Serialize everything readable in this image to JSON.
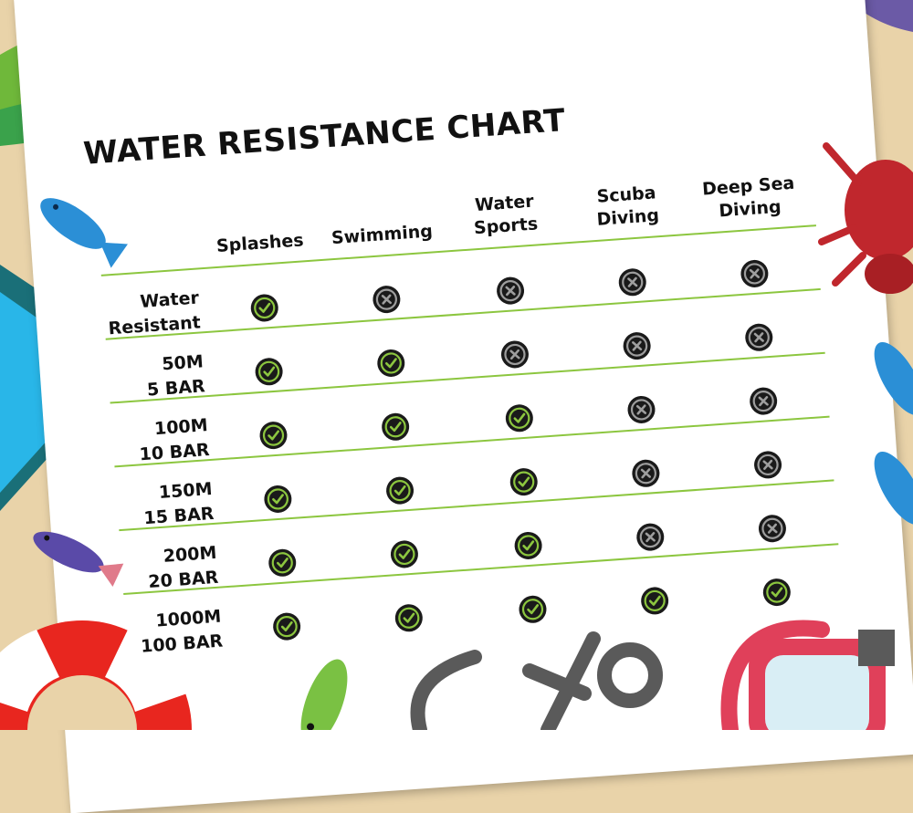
{
  "chart_data": {
    "type": "table",
    "title": "WATER RESISTANCE CHART",
    "columns": [
      {
        "lines": [
          "Splashes"
        ]
      },
      {
        "lines": [
          "Swimming"
        ]
      },
      {
        "lines": [
          "Water",
          "Sports"
        ]
      },
      {
        "lines": [
          "Scuba",
          "Diving"
        ]
      },
      {
        "lines": [
          "Deep Sea",
          "Diving"
        ]
      }
    ],
    "rows": [
      {
        "lines": [
          "Water",
          "Resistant"
        ],
        "values": [
          true,
          false,
          false,
          false,
          false
        ]
      },
      {
        "lines": [
          "50M",
          "5 BAR"
        ],
        "values": [
          true,
          true,
          false,
          false,
          false
        ]
      },
      {
        "lines": [
          "100M",
          "10 BAR"
        ],
        "values": [
          true,
          true,
          true,
          false,
          false
        ]
      },
      {
        "lines": [
          "150M",
          "15 BAR"
        ],
        "values": [
          true,
          true,
          true,
          false,
          false
        ]
      },
      {
        "lines": [
          "200M",
          "20 BAR"
        ],
        "values": [
          true,
          true,
          true,
          false,
          false
        ]
      },
      {
        "lines": [
          "1000M",
          "100 BAR"
        ],
        "values": [
          true,
          true,
          true,
          true,
          true
        ]
      }
    ],
    "legend": {
      "true": "check-icon",
      "false": "cross-icon"
    },
    "colors": {
      "check": "#8cc63f",
      "cross": "#9e9e9e",
      "icon_bg": "#1a1a1a",
      "rule": "#8cc63f"
    }
  }
}
